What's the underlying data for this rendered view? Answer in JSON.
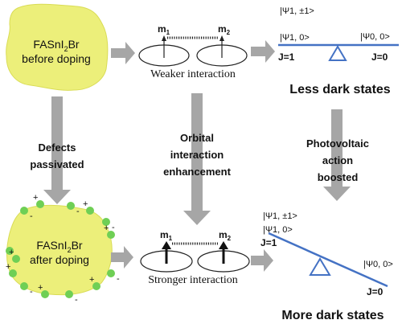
{
  "top_blob": {
    "line1": "FASnI",
    "sub1": "2",
    "line1_end": "Br",
    "line2": "before doping"
  },
  "bottom_blob": {
    "line1": "FASnI",
    "sub1": "2",
    "line1_end": "Br",
    "line2": "after doping"
  },
  "labels": {
    "defects": [
      "Defects",
      "passivated"
    ],
    "orbital": [
      "Orbital",
      "interaction",
      "enhancement"
    ],
    "photovoltaic": [
      "Photovoltaic",
      "action",
      "boosted"
    ]
  },
  "top_orbitals": {
    "m1": "m",
    "m1_sub": "1",
    "m2": "m",
    "m2_sub": "2",
    "caption": "Weaker interaction"
  },
  "bottom_orbitals": {
    "m1": "m",
    "m1_sub": "1",
    "m2": "m",
    "m2_sub": "2",
    "caption": "Stronger interaction"
  },
  "top_states": {
    "psi1_pm1": "|Ψ1, ±1>",
    "psi1_0": "|Ψ1, 0>",
    "psi0_0": "|Ψ0, 0>",
    "j1": "J=1",
    "j0": "J=0",
    "caption": "Less dark states"
  },
  "bottom_states": {
    "psi1_pm1": "|Ψ1, ±1>",
    "psi1_0": "|Ψ1, 0>",
    "psi0_0": "|Ψ0, 0>",
    "j1": "J=1",
    "j0": "J=0",
    "caption": "More dark states"
  },
  "dopant_signs": [
    "-",
    "+",
    "-",
    "+",
    "-",
    "+",
    "-",
    "+",
    "-",
    "+",
    "-",
    "+",
    "-",
    "+"
  ],
  "colors": {
    "blob": "#ecef7a",
    "dopant": "#6fcf55",
    "arrow": "#a6a6a6",
    "seesaw": "#4472c4"
  }
}
